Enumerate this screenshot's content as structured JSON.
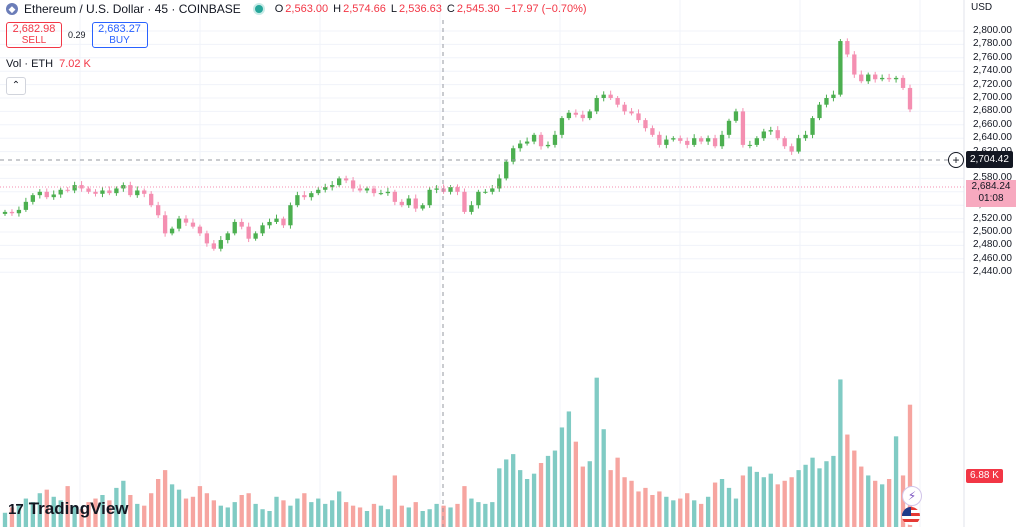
{
  "header": {
    "title": "Ethereum / U.S. Dollar · 45 · COINBASE",
    "ohlc": [
      {
        "k": "O",
        "v": "2,563.00"
      },
      {
        "k": "H",
        "v": "2,574.66"
      },
      {
        "k": "L",
        "v": "2,536.63"
      },
      {
        "k": "C",
        "v": "2,545.30"
      },
      {
        "k": "",
        "v": "−17.97 (−0.70%)"
      }
    ]
  },
  "trade": {
    "sell_price": "2,682.98",
    "sell_label": "SELL",
    "spread": "0.29",
    "buy_price": "2,683.27",
    "buy_label": "BUY"
  },
  "volume_legend": {
    "label": "Vol · ETH",
    "value": "7.02 K"
  },
  "axis": {
    "currency": "USD"
  },
  "crosshair_price": "2,704.42",
  "last_price": {
    "price": "2,684.24",
    "countdown": "01:08"
  },
  "volume_last": "6.88 K",
  "brand": {
    "name": "TradingView",
    "logo": "17"
  },
  "colors": {
    "up": "#4caf50",
    "down": "#f48fb1",
    "vol_up": "#80cbc4",
    "vol_down": "#f6a5a0"
  },
  "icons": {
    "bolt": "lightning-icon",
    "flag": "us-flag-icon",
    "plus": "plus-circle-icon"
  },
  "chart_data": {
    "type": "candlestick",
    "symbol": "ETHUSD",
    "interval": "45",
    "ylim": [
      2430,
      2810
    ],
    "y_ticks": [
      2440,
      2460,
      2480,
      2500,
      2520,
      2540,
      2560,
      2580,
      2600,
      2620,
      2640,
      2660,
      2680,
      2700,
      2720,
      2740,
      2760,
      2780,
      2800
    ],
    "closes": [
      2530,
      2528,
      2533,
      2545,
      2555,
      2560,
      2552,
      2556,
      2563,
      2562,
      2570,
      2565,
      2560,
      2557,
      2562,
      2558,
      2565,
      2570,
      2555,
      2562,
      2557,
      2540,
      2525,
      2498,
      2505,
      2520,
      2514,
      2508,
      2498,
      2483,
      2475,
      2488,
      2498,
      2515,
      2508,
      2490,
      2498,
      2510,
      2515,
      2520,
      2510,
      2540,
      2555,
      2552,
      2558,
      2563,
      2567,
      2570,
      2580,
      2577,
      2565,
      2562,
      2565,
      2558,
      2558,
      2560,
      2545,
      2540,
      2550,
      2535,
      2540,
      2563,
      2565,
      2560,
      2567,
      2560,
      2530,
      2540,
      2560,
      2560,
      2565,
      2580,
      2605,
      2625,
      2632,
      2635,
      2645,
      2628,
      2630,
      2645,
      2670,
      2678,
      2675,
      2670,
      2680,
      2700,
      2705,
      2700,
      2690,
      2680,
      2677,
      2667,
      2655,
      2645,
      2630,
      2638,
      2640,
      2636,
      2630,
      2640,
      2635,
      2640,
      2628,
      2645,
      2666,
      2680,
      2630,
      2630,
      2640,
      2650,
      2652,
      2640,
      2628,
      2620,
      2640,
      2645,
      2670,
      2690,
      2700,
      2705,
      2785,
      2765,
      2735,
      2725,
      2735,
      2728,
      2730,
      2728,
      2730,
      2715,
      2683
    ],
    "volumes": [
      0.8,
      1.1,
      1.3,
      1.6,
      1.4,
      1.9,
      2.1,
      1.7,
      1.5,
      2.3,
      1.2,
      1.0,
      1.4,
      1.6,
      1.8,
      1.5,
      2.2,
      2.6,
      1.8,
      1.3,
      1.2,
      1.9,
      2.7,
      3.2,
      2.4,
      2.1,
      1.6,
      1.7,
      2.3,
      1.9,
      1.5,
      1.2,
      1.1,
      1.4,
      1.8,
      1.9,
      1.3,
      1.0,
      0.9,
      1.7,
      1.5,
      1.2,
      1.6,
      1.9,
      1.4,
      1.6,
      1.3,
      1.5,
      2.0,
      1.4,
      1.2,
      1.1,
      0.9,
      1.3,
      1.2,
      1.0,
      2.9,
      1.2,
      1.1,
      1.4,
      0.9,
      1.0,
      1.3,
      1.2,
      1.1,
      1.3,
      2.3,
      1.6,
      1.4,
      1.3,
      1.4,
      3.3,
      3.8,
      4.1,
      3.2,
      2.7,
      3.0,
      3.6,
      4.0,
      4.3,
      5.6,
      6.5,
      4.8,
      3.4,
      3.7,
      8.4,
      5.5,
      3.2,
      3.9,
      2.8,
      2.6,
      2.0,
      2.2,
      1.8,
      2.0,
      1.7,
      1.5,
      1.6,
      1.9,
      1.5,
      1.3,
      1.7,
      2.5,
      2.7,
      2.2,
      1.6,
      2.9,
      3.4,
      3.1,
      2.8,
      3.0,
      2.4,
      2.6,
      2.8,
      3.2,
      3.5,
      3.9,
      3.3,
      3.7,
      4.0,
      8.3,
      5.2,
      4.3,
      3.4,
      2.9,
      2.6,
      2.4,
      2.7,
      5.1,
      2.9,
      6.88
    ],
    "volume_max": 9.0
  }
}
